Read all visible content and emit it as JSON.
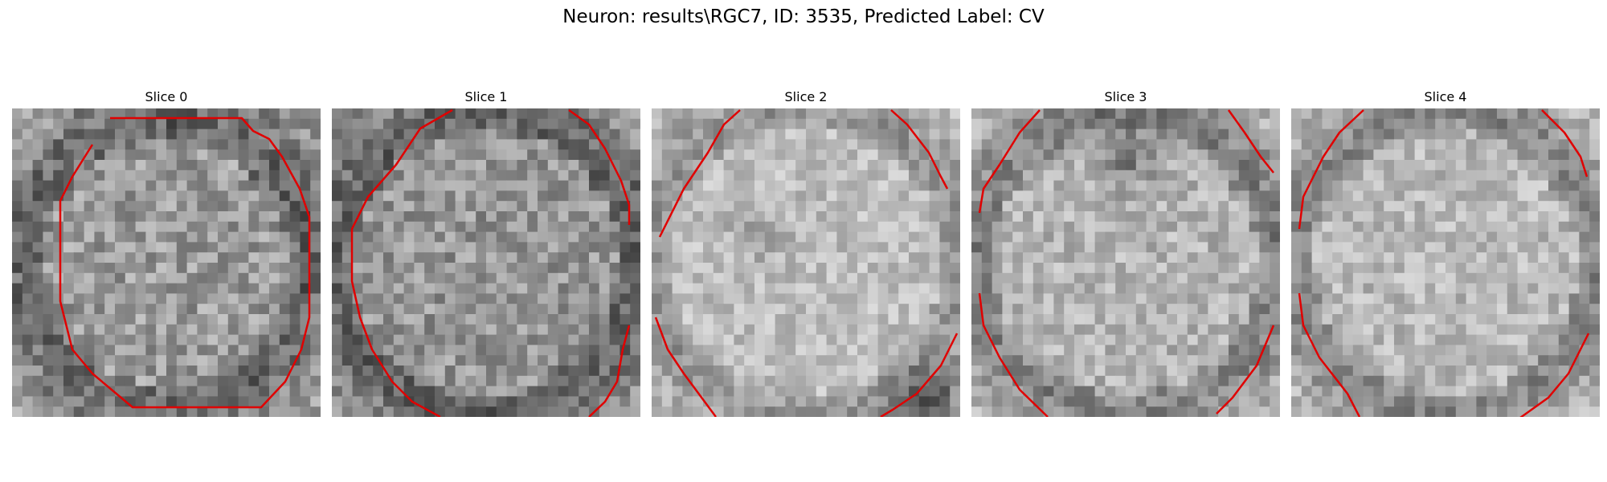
{
  "figure": {
    "title": "Neuron: results\\RGC7, ID: 3535, Predicted Label: CV",
    "contour_color": "#e00000"
  },
  "panels": [
    {
      "title": "Slice 0"
    },
    {
      "title": "Slice 1"
    },
    {
      "title": "Slice 2"
    },
    {
      "title": "Slice 3"
    },
    {
      "title": "Slice 4"
    }
  ]
}
